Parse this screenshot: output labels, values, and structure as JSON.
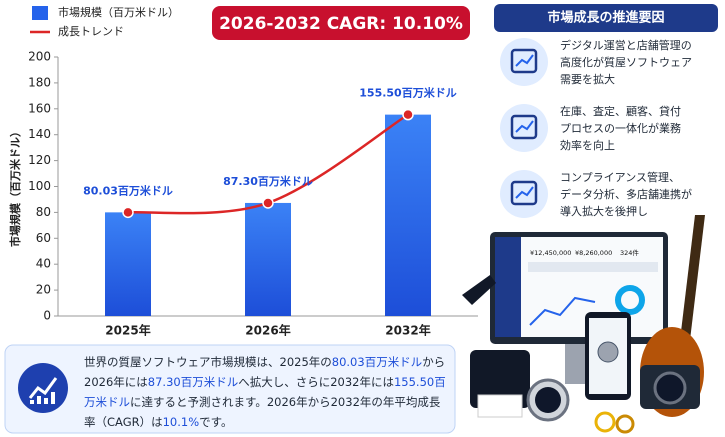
{
  "chart_data": {
    "type": "bar",
    "categories": [
      "2025年",
      "2026年",
      "2032年"
    ],
    "series": [
      {
        "name": "市場規模（百万米ドル）",
        "color": "#2563eb",
        "values": [
          80.03,
          87.3,
          155.5
        ],
        "value_labels": [
          "80.03百万米ドル",
          "87.30百万米ドル",
          "155.50百万米ドル"
        ]
      },
      {
        "name": "成長トレンド",
        "color": "#dc2626",
        "type": "line",
        "values": [
          80.03,
          87.3,
          155.5
        ]
      }
    ],
    "ylabel": "市場規模（百万米ドル）",
    "ylim": [
      0,
      200
    ],
    "yticks": [
      0,
      20,
      40,
      60,
      80,
      100,
      120,
      140,
      160,
      180,
      200
    ],
    "grid": false,
    "legend": "top-left",
    "badge": "2026-2032 CAGR: 10.10%"
  },
  "drivers": {
    "title": "市場成長の推進要因",
    "items": [
      {
        "lines": [
          "デジタル運営と店舗管理の",
          "高度化が質屋ソフトウェア",
          "需要を拡大"
        ]
      },
      {
        "lines": [
          "在庫、査定、顧客、貸付",
          "プロセスの一体化が業務",
          "効率を向上"
        ]
      },
      {
        "lines": [
          "コンプライアンス管理、",
          "データ分析、多店舗連携が",
          "導入拡大を後押し"
        ]
      }
    ]
  },
  "summary": [
    {
      "text": "世界の質屋ソフトウェア市場規模は、2025年の",
      "highlight": false
    },
    {
      "text": "80.03百万米ドル",
      "highlight": true
    },
    {
      "text": "から2026年には",
      "highlight": false
    },
    {
      "text": "87.30百万米ドル",
      "highlight": true
    },
    {
      "text": "へ拡大し、さらに2032年には",
      "highlight": false
    },
    {
      "text": "155.50百万米ドル",
      "highlight": true
    },
    {
      "text": "に達すると予測されます。2026年から2032年の年平均成長率（CAGR）は",
      "highlight": false
    },
    {
      "text": "10.1%",
      "highlight": true
    },
    {
      "text": "です。",
      "highlight": false
    }
  ],
  "illustration": {
    "screen_values": [
      "¥12,450,000",
      "¥8,260,000",
      "324件"
    ]
  }
}
